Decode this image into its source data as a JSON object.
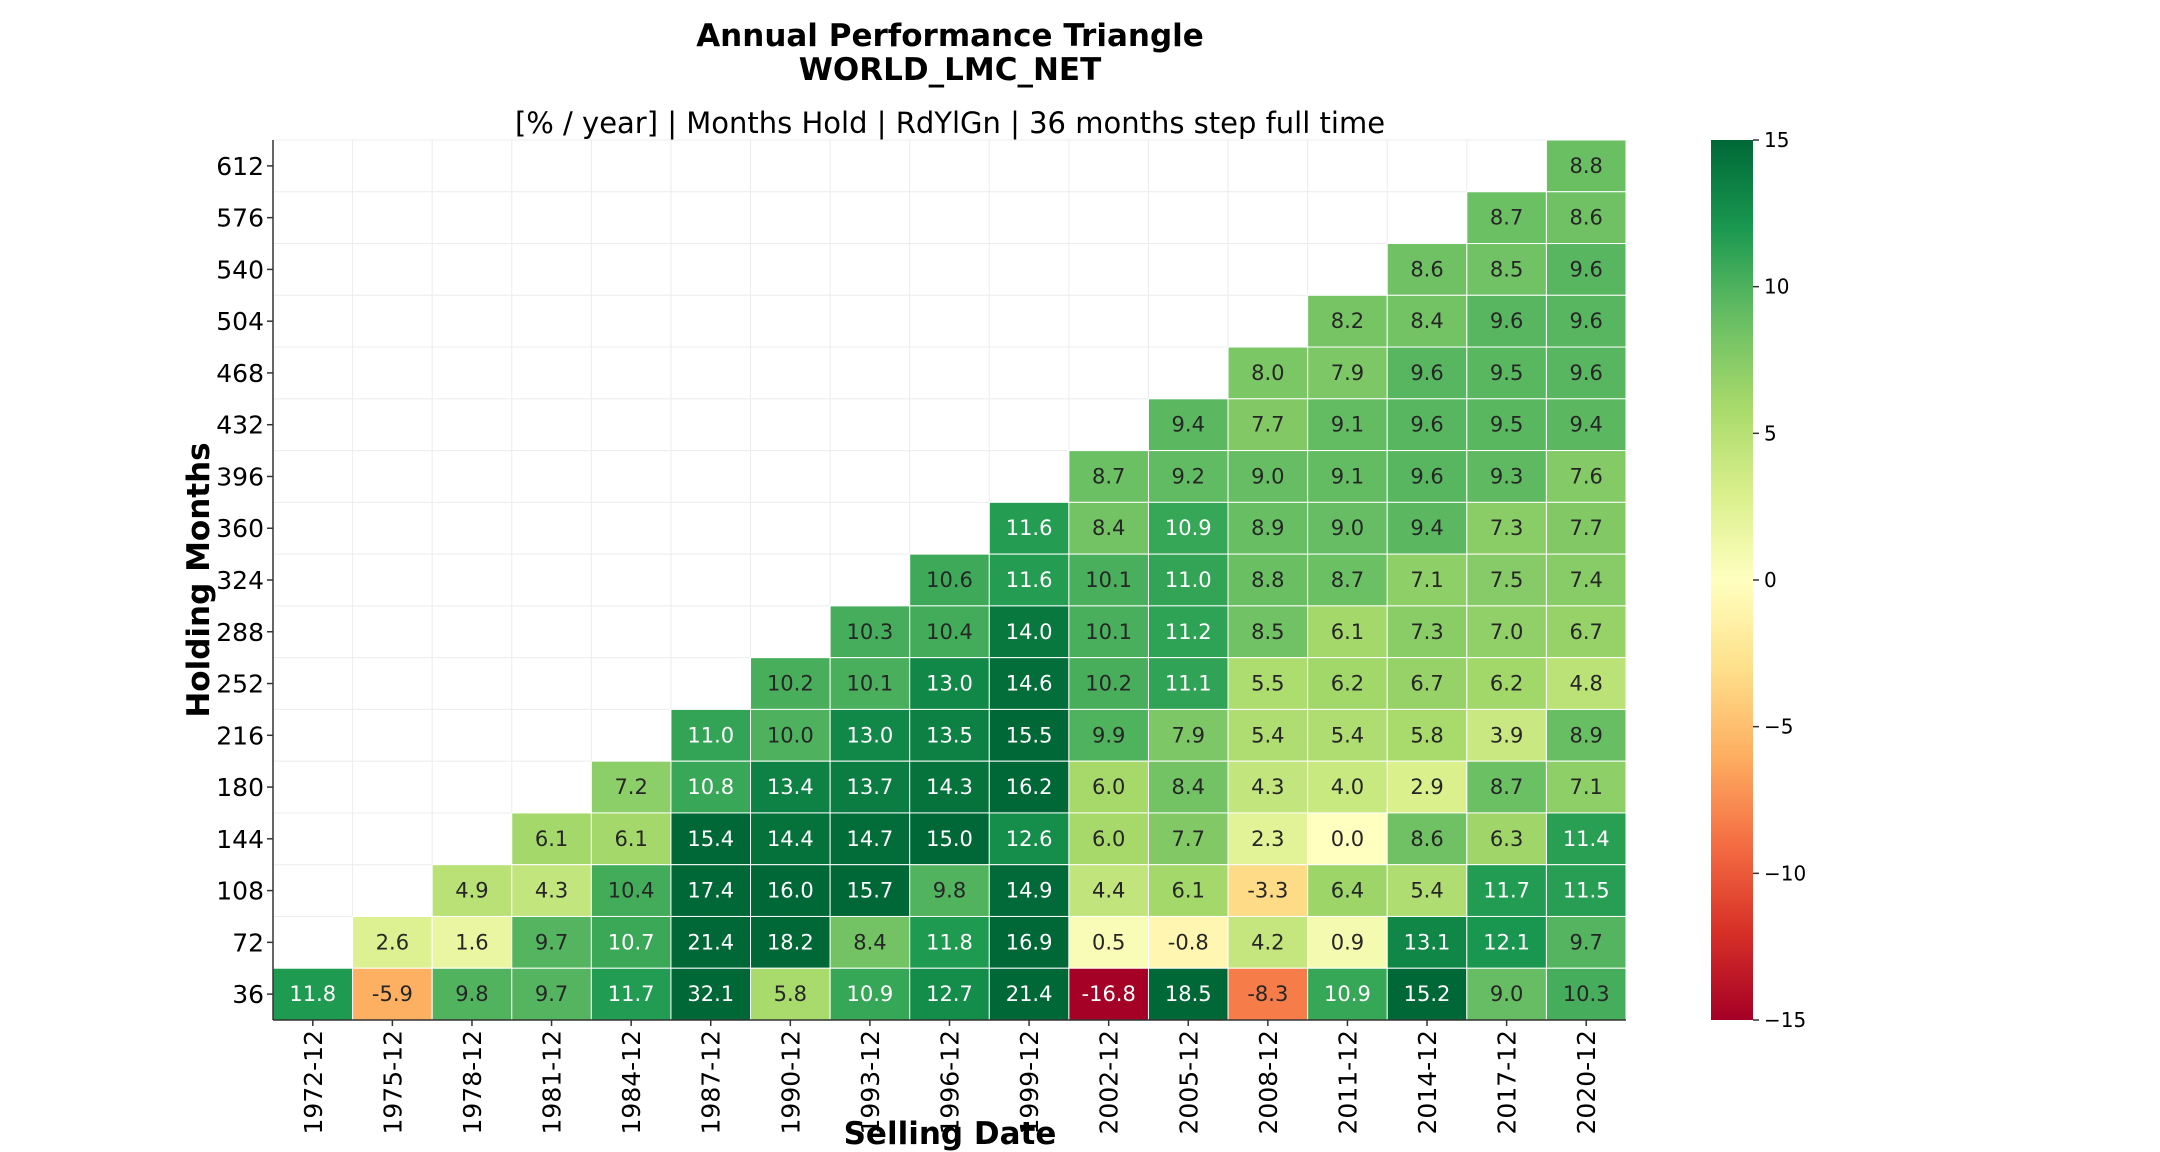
{
  "chart_data": {
    "type": "heatmap",
    "title": "Annual Performance Triangle",
    "title_line2": "WORLD_LMC_NET",
    "subtitle": "[% / year] | Months Hold | RdYlGn | 36 months step full time",
    "xlabel": "Selling Date",
    "ylabel": "Holding Months",
    "colormap": "RdYlGn",
    "vmin": -15,
    "vmax": 15,
    "colorbar_ticks": [
      -15,
      -10,
      -5,
      0,
      5,
      10,
      15
    ],
    "colorbar_tick_labels": [
      "−15",
      "−10",
      "−5",
      "0",
      "5",
      "10",
      "15"
    ],
    "x_categories": [
      "1972-12",
      "1975-12",
      "1978-12",
      "1981-12",
      "1984-12",
      "1987-12",
      "1990-12",
      "1993-12",
      "1996-12",
      "1999-12",
      "2002-12",
      "2005-12",
      "2008-12",
      "2011-12",
      "2014-12",
      "2017-12",
      "2020-12"
    ],
    "y_categories": [
      612,
      576,
      540,
      504,
      468,
      432,
      396,
      360,
      324,
      288,
      252,
      216,
      180,
      144,
      108,
      72,
      36
    ],
    "values": [
      [
        null,
        null,
        null,
        null,
        null,
        null,
        null,
        null,
        null,
        null,
        null,
        null,
        null,
        null,
        null,
        null,
        8.8
      ],
      [
        null,
        null,
        null,
        null,
        null,
        null,
        null,
        null,
        null,
        null,
        null,
        null,
        null,
        null,
        null,
        8.7,
        8.6
      ],
      [
        null,
        null,
        null,
        null,
        null,
        null,
        null,
        null,
        null,
        null,
        null,
        null,
        null,
        null,
        8.6,
        8.5,
        9.6
      ],
      [
        null,
        null,
        null,
        null,
        null,
        null,
        null,
        null,
        null,
        null,
        null,
        null,
        null,
        8.2,
        8.4,
        9.6,
        9.6
      ],
      [
        null,
        null,
        null,
        null,
        null,
        null,
        null,
        null,
        null,
        null,
        null,
        null,
        8.0,
        7.9,
        9.6,
        9.5,
        9.6
      ],
      [
        null,
        null,
        null,
        null,
        null,
        null,
        null,
        null,
        null,
        null,
        null,
        9.4,
        7.7,
        9.1,
        9.6,
        9.5,
        9.4
      ],
      [
        null,
        null,
        null,
        null,
        null,
        null,
        null,
        null,
        null,
        null,
        8.7,
        9.2,
        9.0,
        9.1,
        9.6,
        9.3,
        7.6
      ],
      [
        null,
        null,
        null,
        null,
        null,
        null,
        null,
        null,
        null,
        11.6,
        8.4,
        10.9,
        8.9,
        9.0,
        9.4,
        7.3,
        7.7
      ],
      [
        null,
        null,
        null,
        null,
        null,
        null,
        null,
        null,
        10.6,
        11.6,
        10.1,
        11.0,
        8.8,
        8.7,
        7.1,
        7.5,
        7.4
      ],
      [
        null,
        null,
        null,
        null,
        null,
        null,
        null,
        10.3,
        10.4,
        14.0,
        10.1,
        11.2,
        8.5,
        6.1,
        7.3,
        7.0,
        6.7
      ],
      [
        null,
        null,
        null,
        null,
        null,
        null,
        10.2,
        10.1,
        13.0,
        14.6,
        10.2,
        11.1,
        5.5,
        6.2,
        6.7,
        6.2,
        4.8
      ],
      [
        null,
        null,
        null,
        null,
        null,
        11.0,
        10.0,
        13.0,
        13.5,
        15.5,
        9.9,
        7.9,
        5.4,
        5.4,
        5.8,
        3.9,
        8.9
      ],
      [
        null,
        null,
        null,
        null,
        7.2,
        10.8,
        13.4,
        13.7,
        14.3,
        16.2,
        6.0,
        8.4,
        4.3,
        4.0,
        2.9,
        8.7,
        7.1
      ],
      [
        null,
        null,
        null,
        6.1,
        6.1,
        15.4,
        14.4,
        14.7,
        15.0,
        12.6,
        6.0,
        7.7,
        2.3,
        0.0,
        8.6,
        6.3,
        11.4
      ],
      [
        null,
        null,
        4.9,
        4.3,
        10.4,
        17.4,
        16.0,
        15.7,
        9.8,
        14.9,
        4.4,
        6.1,
        -3.3,
        6.4,
        5.4,
        11.7,
        11.5
      ],
      [
        null,
        2.6,
        1.6,
        9.7,
        10.7,
        21.4,
        18.2,
        8.4,
        11.8,
        16.9,
        0.5,
        -0.8,
        4.2,
        0.9,
        13.1,
        12.1,
        9.7
      ],
      [
        11.8,
        -5.9,
        9.8,
        9.7,
        11.7,
        32.1,
        5.8,
        10.9,
        12.7,
        21.4,
        -16.8,
        18.5,
        -8.3,
        10.9,
        15.2,
        9.0,
        10.3
      ]
    ],
    "value_labels": [
      [
        null,
        null,
        null,
        null,
        null,
        null,
        null,
        null,
        null,
        null,
        null,
        null,
        null,
        null,
        null,
        null,
        "8.8"
      ],
      [
        null,
        null,
        null,
        null,
        null,
        null,
        null,
        null,
        null,
        null,
        null,
        null,
        null,
        null,
        null,
        "8.7",
        "8.6"
      ],
      [
        null,
        null,
        null,
        null,
        null,
        null,
        null,
        null,
        null,
        null,
        null,
        null,
        null,
        null,
        "8.6",
        "8.5",
        "9.6"
      ],
      [
        null,
        null,
        null,
        null,
        null,
        null,
        null,
        null,
        null,
        null,
        null,
        null,
        null,
        "8.2",
        "8.4",
        "9.6",
        "9.6"
      ],
      [
        null,
        null,
        null,
        null,
        null,
        null,
        null,
        null,
        null,
        null,
        null,
        null,
        "8.0",
        "7.9",
        "9.6",
        "9.5",
        "9.6"
      ],
      [
        null,
        null,
        null,
        null,
        null,
        null,
        null,
        null,
        null,
        null,
        null,
        "9.4",
        "7.7",
        "9.1",
        "9.6",
        "9.5",
        "9.4"
      ],
      [
        null,
        null,
        null,
        null,
        null,
        null,
        null,
        null,
        null,
        null,
        "8.7",
        "9.2",
        "9.0",
        "9.1",
        "9.6",
        "9.3",
        "7.6"
      ],
      [
        null,
        null,
        null,
        null,
        null,
        null,
        null,
        null,
        null,
        "11.6",
        "8.4",
        "10.9",
        "8.9",
        "9.0",
        "9.4",
        "7.3",
        "7.7"
      ],
      [
        null,
        null,
        null,
        null,
        null,
        null,
        null,
        null,
        "10.6",
        "11.6",
        "10.1",
        "11.0",
        "8.8",
        "8.7",
        "7.1",
        "7.5",
        "7.4"
      ],
      [
        null,
        null,
        null,
        null,
        null,
        null,
        null,
        "10.3",
        "10.4",
        "14.0",
        "10.1",
        "11.2",
        "8.5",
        "6.1",
        "7.3",
        "7.0",
        "6.7"
      ],
      [
        null,
        null,
        null,
        null,
        null,
        null,
        "10.2",
        "10.1",
        "13.0",
        "14.6",
        "10.2",
        "11.1",
        "5.5",
        "6.2",
        "6.7",
        "6.2",
        "4.8"
      ],
      [
        null,
        null,
        null,
        null,
        null,
        "11.0",
        "10.0",
        "13.0",
        "13.5",
        "15.5",
        "9.9",
        "7.9",
        "5.4",
        "5.4",
        "5.8",
        "3.9",
        "8.9"
      ],
      [
        null,
        null,
        null,
        null,
        "7.2",
        "10.8",
        "13.4",
        "13.7",
        "14.3",
        "16.2",
        "6.0",
        "8.4",
        "4.3",
        "4.0",
        "2.9",
        "8.7",
        "7.1"
      ],
      [
        null,
        null,
        null,
        "6.1",
        "6.1",
        "15.4",
        "14.4",
        "14.7",
        "15.0",
        "12.6",
        "6.0",
        "7.7",
        "2.3",
        "0.0",
        "8.6",
        "6.3",
        "11.4"
      ],
      [
        null,
        null,
        "4.9",
        "4.3",
        "10.4",
        "17.4",
        "16.0",
        "15.7",
        "9.8",
        "14.9",
        "4.4",
        "6.1",
        "-3.3",
        "6.4",
        "5.4",
        "11.7",
        "11.5"
      ],
      [
        null,
        "2.6",
        "1.6",
        "9.7",
        "10.7",
        "21.4",
        "18.2",
        "8.4",
        "11.8",
        "16.9",
        "0.5",
        "-0.8",
        "4.2",
        "0.9",
        "13.1",
        "12.1",
        "9.7"
      ],
      [
        "11.8",
        "-5.9",
        "9.8",
        "9.7",
        "11.7",
        "32.1",
        "5.8",
        "10.9",
        "12.7",
        "21.4",
        "-16.8",
        "18.5",
        "-8.3",
        "10.9",
        "15.2",
        "9.0",
        "10.3"
      ]
    ],
    "grid": true,
    "legend": "colorbar-right"
  }
}
